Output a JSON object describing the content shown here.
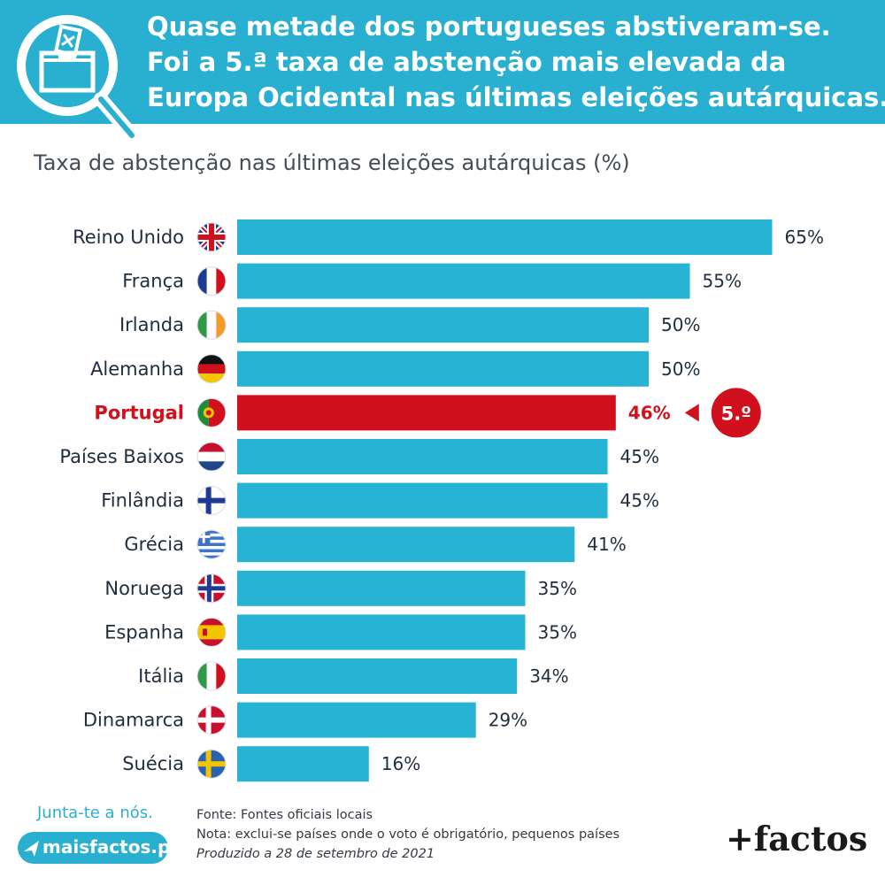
{
  "header": {
    "headline_lines": [
      "Quase metade dos portugueses abstiveram-se.",
      "Foi a 5.ª taxa de abstenção mais elevada da",
      "Europa Ocidental nas últimas eleições autárquicas."
    ],
    "icon": "magnifier-ballot-box-icon"
  },
  "colors": {
    "header_bg": "#29b0d0",
    "bar": "#27b3d3",
    "highlight": "#d0101c",
    "label": "#1f2d3d"
  },
  "chart_data": {
    "type": "bar",
    "orientation": "horizontal",
    "title": "Taxa de abstenção nas últimas eleições autárquicas (%)",
    "xlim": [
      0,
      70
    ],
    "categories": [
      "Reino Unido",
      "França",
      "Irlanda",
      "Alemanha",
      "Portugal",
      "Países Baixos",
      "Finlândia",
      "Grécia",
      "Noruega",
      "Espanha",
      "Itália",
      "Dinamarca",
      "Suécia"
    ],
    "values": [
      65,
      55,
      50,
      50,
      46,
      45,
      45,
      41,
      35,
      35,
      34,
      29,
      16
    ],
    "value_labels": [
      "65%",
      "55%",
      "50%",
      "50%",
      "46%",
      "45%",
      "45%",
      "41%",
      "35%",
      "35%",
      "34%",
      "29%",
      "16%"
    ],
    "flags": [
      "uk-flag-icon",
      "france-flag-icon",
      "ireland-flag-icon",
      "germany-flag-icon",
      "portugal-flag-icon",
      "netherlands-flag-icon",
      "finland-flag-icon",
      "greece-flag-icon",
      "norway-flag-icon",
      "spain-flag-icon",
      "italy-flag-icon",
      "denmark-flag-icon",
      "sweden-flag-icon"
    ],
    "highlight": {
      "category": "Portugal",
      "rank_badge": "5.º"
    }
  },
  "footer": {
    "join_text": "Junta-te a nós.",
    "site": "maisfactos.pt",
    "source": "Fonte: Fontes oficiais locais",
    "note": "Nota: exclui-se países onde o voto é obrigatório, pequenos países",
    "produced": "Produzido a 28 de setembro de 2021",
    "brand": "+factos"
  }
}
